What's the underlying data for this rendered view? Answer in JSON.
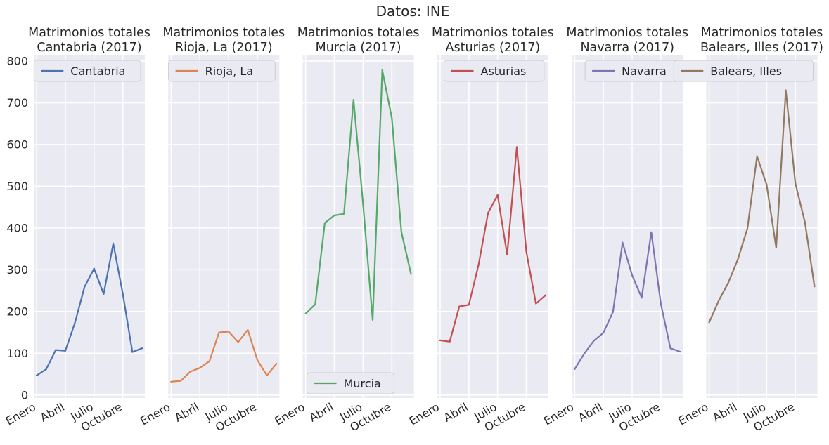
{
  "suptitle": "Datos: INE",
  "colors": {
    "background": "#eaeaf2",
    "grid": "#ffffff",
    "text": "#262626"
  },
  "chart_data": [
    {
      "type": "line",
      "title": "Matrimonios totales\nCantabria (2017)",
      "xlabel": "",
      "ylabel": "",
      "x": [
        1,
        2,
        3,
        4,
        5,
        6,
        7,
        8,
        9,
        10,
        11,
        12
      ],
      "xticks": [
        1,
        4,
        7,
        10
      ],
      "xticklabels": [
        "Enero",
        "Abril",
        "Julio",
        "Octubre"
      ],
      "yticks": [
        0,
        100,
        200,
        300,
        400,
        500,
        600,
        700,
        800
      ],
      "ylim": [
        -7,
        815
      ],
      "grid": true,
      "legend_position": "upper right",
      "series": [
        {
          "name": "Cantabria",
          "color": "#4c72b0",
          "values": [
            47,
            62,
            108,
            106,
            173,
            259,
            303,
            242,
            363,
            242,
            103,
            112
          ]
        }
      ]
    },
    {
      "type": "line",
      "title": "Matrimonios totales\nRioja, La (2017)",
      "xlabel": "",
      "ylabel": "",
      "x": [
        1,
        2,
        3,
        4,
        5,
        6,
        7,
        8,
        9,
        10,
        11,
        12
      ],
      "xticks": [
        1,
        4,
        7,
        10
      ],
      "xticklabels": [
        "Enero",
        "Abril",
        "Julio",
        "Octubre"
      ],
      "yticks": [
        0,
        100,
        200,
        300,
        400,
        500,
        600,
        700,
        800
      ],
      "ylim": [
        -7,
        815
      ],
      "grid": true,
      "legend_position": "upper right",
      "series": [
        {
          "name": "Rioja, La",
          "color": "#dd8452",
          "values": [
            32,
            34,
            56,
            65,
            81,
            150,
            152,
            127,
            156,
            84,
            47,
            75
          ]
        }
      ]
    },
    {
      "type": "line",
      "title": "Matrimonios totales\nMurcia (2017)",
      "xlabel": "",
      "ylabel": "",
      "x": [
        1,
        2,
        3,
        4,
        5,
        6,
        7,
        8,
        9,
        10,
        11,
        12
      ],
      "xticks": [
        1,
        4,
        7,
        10
      ],
      "xticklabels": [
        "Enero",
        "Abril",
        "Julio",
        "Octubre"
      ],
      "yticks": [
        0,
        100,
        200,
        300,
        400,
        500,
        600,
        700,
        800
      ],
      "ylim": [
        -7,
        815
      ],
      "grid": true,
      "legend_position": "lower left",
      "series": [
        {
          "name": "Murcia",
          "color": "#55a868",
          "values": [
            195,
            217,
            412,
            430,
            434,
            707,
            457,
            180,
            778,
            663,
            390,
            290
          ]
        }
      ]
    },
    {
      "type": "line",
      "title": "Matrimonios totales\nAsturias (2017)",
      "xlabel": "",
      "ylabel": "",
      "x": [
        1,
        2,
        3,
        4,
        5,
        6,
        7,
        8,
        9,
        10,
        11,
        12
      ],
      "xticks": [
        1,
        4,
        7,
        10
      ],
      "xticklabels": [
        "Enero",
        "Abril",
        "Julio",
        "Octubre"
      ],
      "yticks": [
        0,
        100,
        200,
        300,
        400,
        500,
        600,
        700,
        800
      ],
      "ylim": [
        -7,
        815
      ],
      "grid": true,
      "legend_position": "upper right",
      "series": [
        {
          "name": "Asturias",
          "color": "#c44e52",
          "values": [
            131,
            128,
            212,
            216,
            311,
            436,
            479,
            336,
            594,
            343,
            219,
            239
          ]
        }
      ]
    },
    {
      "type": "line",
      "title": "Matrimonios totales\nNavarra (2017)",
      "xlabel": "",
      "ylabel": "",
      "x": [
        1,
        2,
        3,
        4,
        5,
        6,
        7,
        8,
        9,
        10,
        11,
        12
      ],
      "xticks": [
        1,
        4,
        7,
        10
      ],
      "xticklabels": [
        "Enero",
        "Abril",
        "Julio",
        "Octubre"
      ],
      "yticks": [
        0,
        100,
        200,
        300,
        400,
        500,
        600,
        700,
        800
      ],
      "ylim": [
        -7,
        815
      ],
      "grid": true,
      "legend_position": "upper right",
      "series": [
        {
          "name": "Navarra",
          "color": "#8172b3",
          "values": [
            62,
            99,
            130,
            149,
            199,
            365,
            287,
            233,
            390,
            218,
            112,
            104
          ]
        }
      ]
    },
    {
      "type": "line",
      "title": "Matrimonios totales\nBalears, Illes (2017)",
      "xlabel": "",
      "ylabel": "",
      "x": [
        1,
        2,
        3,
        4,
        5,
        6,
        7,
        8,
        9,
        10,
        11,
        12
      ],
      "xticks": [
        1,
        4,
        7,
        10
      ],
      "xticklabels": [
        "Enero",
        "Abril",
        "Julio",
        "Octubre"
      ],
      "yticks": [
        0,
        100,
        200,
        300,
        400,
        500,
        600,
        700,
        800
      ],
      "ylim": [
        -7,
        815
      ],
      "grid": true,
      "legend_position": "upper right",
      "series": [
        {
          "name": "Balears, Illes",
          "color": "#937860",
          "values": [
            174,
            226,
            269,
            325,
            400,
            572,
            504,
            353,
            730,
            507,
            414,
            260
          ]
        }
      ]
    }
  ]
}
